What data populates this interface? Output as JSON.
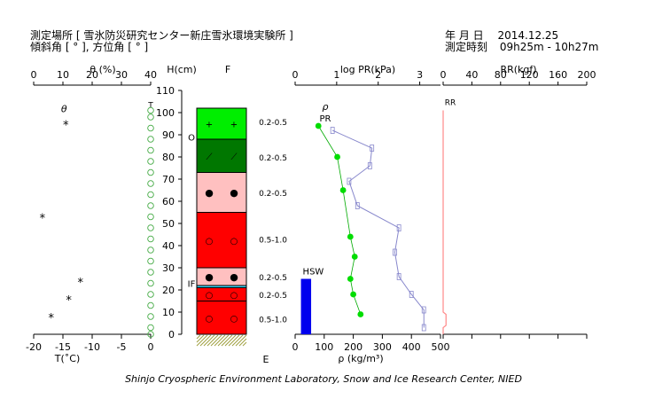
{
  "header": {
    "site_label": "測定場所",
    "site_value": "[ 雪氷防災研究センター新庄雪氷環境実験所 ]",
    "angle_line": "傾斜角 [ ° ], 方位角 [ ° ]",
    "date_label": "年 月 日",
    "date_value": "2014.12.25",
    "time_label": "測定時刻",
    "time_value": "09h25m - 10h27m"
  },
  "footer": "Shinjo Cryospheric Environment Laboratory, Snow and Ice Research Center, NIED",
  "colors": {
    "grain_new": "#00ee00",
    "grain_decomposed": "#007700",
    "grain_small_rounded": "#ffc0c0",
    "grain_melt_forms": "#ff0000",
    "ice_layer": "#33ccee",
    "ground": "#c8c864",
    "density_line": "#00aa00",
    "density_marker": "#00dd00",
    "pr_line": "#8888cc",
    "temp_marker": "#44aa44",
    "rr_line": "#ff8888",
    "hsw_bar": "#0000ee"
  },
  "chart_data": [
    {
      "type": "scatter",
      "name": "theta",
      "title": "θ (%)",
      "x_ticks": [
        "0",
        "10",
        "20",
        "30",
        "40"
      ],
      "xlim": [
        0,
        40
      ],
      "ylim": [
        0,
        110
      ],
      "points": [
        {
          "x": 11,
          "y": 95
        },
        {
          "x": 3,
          "y": 53
        },
        {
          "x": 16,
          "y": 24
        },
        {
          "x": 12,
          "y": 16
        },
        {
          "x": 6,
          "y": 8
        }
      ],
      "label": "θ",
      "marker": "*"
    },
    {
      "type": "scatter",
      "name": "temperature",
      "xlabel": "T(˚C)",
      "x_ticks": [
        "-20",
        "-15",
        "-10",
        "-5",
        "0"
      ],
      "xlim": [
        -20,
        0
      ],
      "ylim": [
        0,
        110
      ],
      "points": [
        {
          "x": 0,
          "y": 101
        },
        {
          "x": 0,
          "y": 98
        },
        {
          "x": 0,
          "y": 93
        },
        {
          "x": 0,
          "y": 88
        },
        {
          "x": 0,
          "y": 83
        },
        {
          "x": 0,
          "y": 78
        },
        {
          "x": 0,
          "y": 73
        },
        {
          "x": 0,
          "y": 68
        },
        {
          "x": 0,
          "y": 63
        },
        {
          "x": 0,
          "y": 58
        },
        {
          "x": 0,
          "y": 53
        },
        {
          "x": 0,
          "y": 48
        },
        {
          "x": 0,
          "y": 43
        },
        {
          "x": 0,
          "y": 38
        },
        {
          "x": 0,
          "y": 33
        },
        {
          "x": 0,
          "y": 28
        },
        {
          "x": 0,
          "y": 23
        },
        {
          "x": 0,
          "y": 18
        },
        {
          "x": 0,
          "y": 13
        },
        {
          "x": 0,
          "y": 8
        },
        {
          "x": 0,
          "y": 3
        },
        {
          "x": 0,
          "y": 0
        }
      ],
      "label": "T",
      "marker": "circle"
    },
    {
      "type": "table",
      "name": "snow_layers",
      "ylabel": "H(cm)",
      "y_ticks": [
        0,
        10,
        20,
        30,
        40,
        50,
        60,
        70,
        80,
        90,
        100,
        110
      ],
      "ylim": [
        0,
        110
      ],
      "top_label": "F",
      "bottom_label": "E",
      "layers": [
        {
          "bottom": 88,
          "top": 102,
          "grain": "new-snow",
          "symbol": "+",
          "size": "0.2-0.5",
          "size_at": 96
        },
        {
          "bottom": 73,
          "top": 88,
          "grain": "decomposed",
          "symbol": "⟋",
          "size": "0.2-0.5",
          "size_at": 80
        },
        {
          "bottom": 55,
          "top": 73,
          "grain": "small-rounded",
          "symbol": "●",
          "size": "0.2-0.5",
          "size_at": 64
        },
        {
          "bottom": 30,
          "top": 55,
          "grain": "melt-forms",
          "symbol": "○",
          "size": "0.5-1.0",
          "size_at": 43
        },
        {
          "bottom": 22,
          "top": 30,
          "grain": "small-rounded",
          "symbol": "●",
          "size": "0.2-0.5",
          "size_at": 26
        },
        {
          "bottom": 21,
          "top": 22,
          "grain": "ice-layer",
          "symbol": "",
          "size": "",
          "size_at": 0
        },
        {
          "bottom": 15,
          "top": 21,
          "grain": "melt-forms",
          "symbol": "○",
          "size": "0.2-0.5",
          "size_at": 18
        },
        {
          "bottom": 0,
          "top": 15,
          "grain": "melt-forms",
          "symbol": "○",
          "size": "0.5-1.0",
          "size_at": 7
        }
      ],
      "annotations": [
        {
          "text": "O",
          "at": 89
        },
        {
          "text": "IF",
          "at": 23
        }
      ]
    },
    {
      "type": "line",
      "name": "density_and_pr",
      "title": "log PR(kPa)",
      "xlabel": "ρ (kg/m³)",
      "top_ticks": [
        "0",
        "1",
        "2",
        "3"
      ],
      "top_xlim": [
        0,
        3.5
      ],
      "bottom_ticks": [
        "0",
        "100",
        "200",
        "300",
        "400",
        "500"
      ],
      "bottom_xlim": [
        0,
        500
      ],
      "ylim": [
        0,
        110
      ],
      "series": [
        {
          "name": "ρ",
          "points": [
            {
              "x": 80,
              "y": 94
            },
            {
              "x": 145,
              "y": 80
            },
            {
              "x": 165,
              "y": 65
            },
            {
              "x": 190,
              "y": 44
            },
            {
              "x": 205,
              "y": 35
            },
            {
              "x": 190,
              "y": 25
            },
            {
              "x": 200,
              "y": 18
            },
            {
              "x": 225,
              "y": 9
            }
          ]
        },
        {
          "name": "PR",
          "points": [
            {
              "x": 0.9,
              "y": 92
            },
            {
              "x": 1.85,
              "y": 84
            },
            {
              "x": 1.8,
              "y": 76
            },
            {
              "x": 1.3,
              "y": 69
            },
            {
              "x": 1.5,
              "y": 58
            },
            {
              "x": 2.5,
              "y": 48
            },
            {
              "x": 2.4,
              "y": 37
            },
            {
              "x": 2.5,
              "y": 26
            },
            {
              "x": 2.8,
              "y": 18
            },
            {
              "x": 3.1,
              "y": 11
            },
            {
              "x": 3.1,
              "y": 3
            }
          ]
        }
      ],
      "bar": {
        "label": "HSW",
        "x0": 20,
        "x1": 55,
        "value": 25
      }
    },
    {
      "type": "line",
      "name": "rammsonde",
      "title": "RR(kgf)",
      "x_ticks": [
        "0",
        "40",
        "80",
        "120",
        "160",
        "200"
      ],
      "xlim": [
        0,
        200
      ],
      "ylim": [
        0,
        110
      ],
      "label": "RR",
      "points": [
        {
          "x": 0,
          "y": 101
        },
        {
          "x": 0,
          "y": 10
        },
        {
          "x": 4,
          "y": 9
        },
        {
          "x": 4,
          "y": 4
        },
        {
          "x": 0,
          "y": 3
        },
        {
          "x": 0,
          "y": 0
        }
      ]
    }
  ]
}
